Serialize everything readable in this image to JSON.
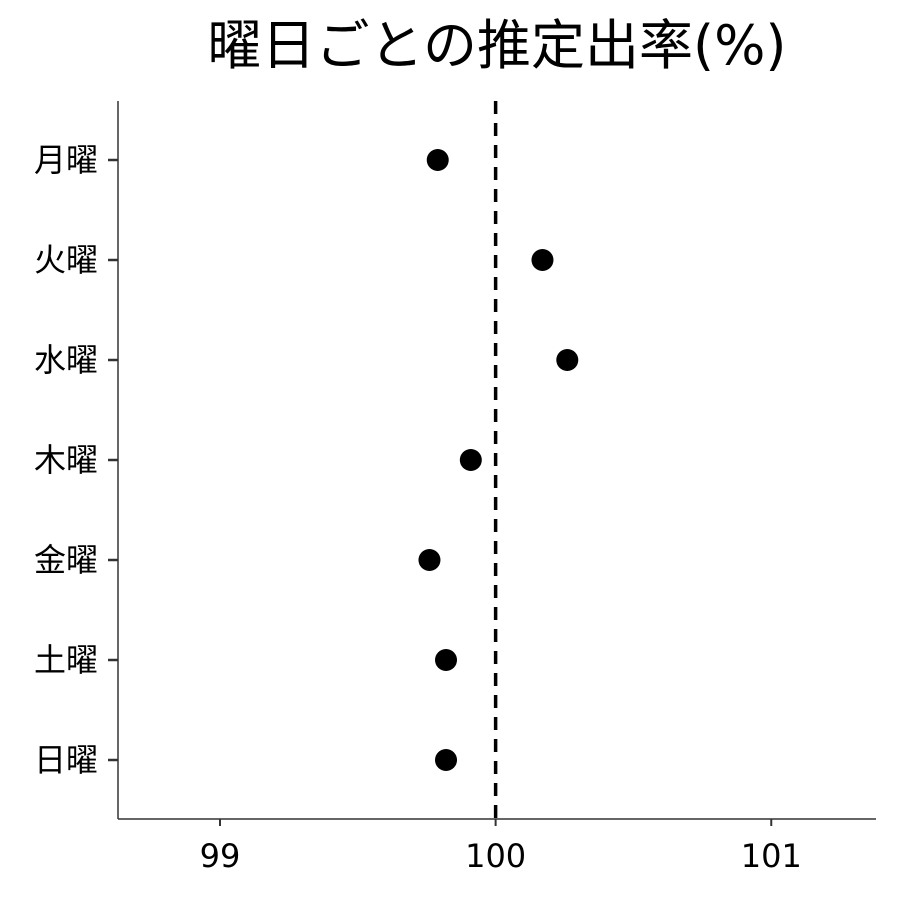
{
  "chart_data": {
    "type": "scatter",
    "title": "曜日ごとの推定出率(%)",
    "xlabel": "",
    "ylabel": "",
    "xlim": [
      98.63,
      101.38
    ],
    "x_ticks": [
      "99",
      "100",
      "101"
    ],
    "x_tick_values": [
      99,
      100,
      101
    ],
    "reference_line": {
      "x": 100,
      "style": "dashed"
    },
    "categories": [
      "月曜",
      "火曜",
      "水曜",
      "木曜",
      "金曜",
      "土曜",
      "日曜"
    ],
    "values": [
      99.79,
      100.17,
      100.26,
      99.91,
      99.76,
      99.82,
      99.82
    ],
    "grid": false,
    "legend": "none",
    "point_color": "#000000"
  }
}
